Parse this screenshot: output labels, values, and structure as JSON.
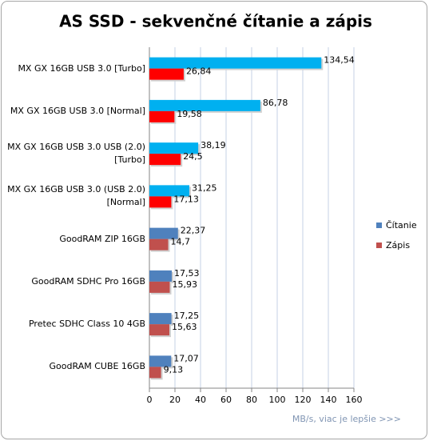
{
  "chart_data": {
    "type": "bar",
    "orientation": "horizontal",
    "title": "AS SSD - sekvenčné čítanie a zápis",
    "xlabel": "MB/s, viac je lepšie >>>",
    "categories": [
      "MX GX 16GB USB 3.0 [Turbo]",
      "MX GX 16GB USB 3.0 [Normal]",
      "MX GX 16GB USB 3.0 USB (2.0) [Turbo]",
      "MX GX 16GB USB 3.0 (USB 2.0) [Normal]",
      "GoodRAM ZIP 16GB",
      "GoodRAM SDHC Pro 16GB",
      "Pretec SDHC Class 10 4GB",
      "GoodRAM CUBE 16GB"
    ],
    "series": [
      {
        "name": "Čítanie",
        "color": "#4f81bd",
        "point_colors": [
          "#00b0f0",
          "#00b0f0",
          "#00b0f0",
          "#00b0f0",
          "#4f81bd",
          "#4f81bd",
          "#4f81bd",
          "#4f81bd"
        ],
        "values": [
          134.54,
          86.78,
          38.19,
          31.25,
          22.37,
          17.53,
          17.25,
          17.07
        ],
        "value_labels": [
          "134,54",
          "86,78",
          "38,19",
          "31,25",
          "22,37",
          "17,53",
          "17,25",
          "17,07"
        ]
      },
      {
        "name": "Zápis",
        "color": "#c0504d",
        "point_colors": [
          "#ff0000",
          "#ff0000",
          "#ff0000",
          "#ff0000",
          "#c0504d",
          "#c0504d",
          "#c0504d",
          "#c0504d"
        ],
        "values": [
          26.84,
          19.58,
          24.5,
          17.13,
          14.7,
          15.93,
          15.63,
          9.13
        ],
        "value_labels": [
          "26,84",
          "19,58",
          "24,5",
          "17,13",
          "14,7",
          "15,93",
          "15,63",
          "9,13"
        ]
      }
    ],
    "xlim": [
      0,
      160
    ],
    "xticks": [
      0,
      20,
      40,
      60,
      80,
      100,
      120,
      140,
      160
    ],
    "grid": true,
    "legend": "right"
  }
}
